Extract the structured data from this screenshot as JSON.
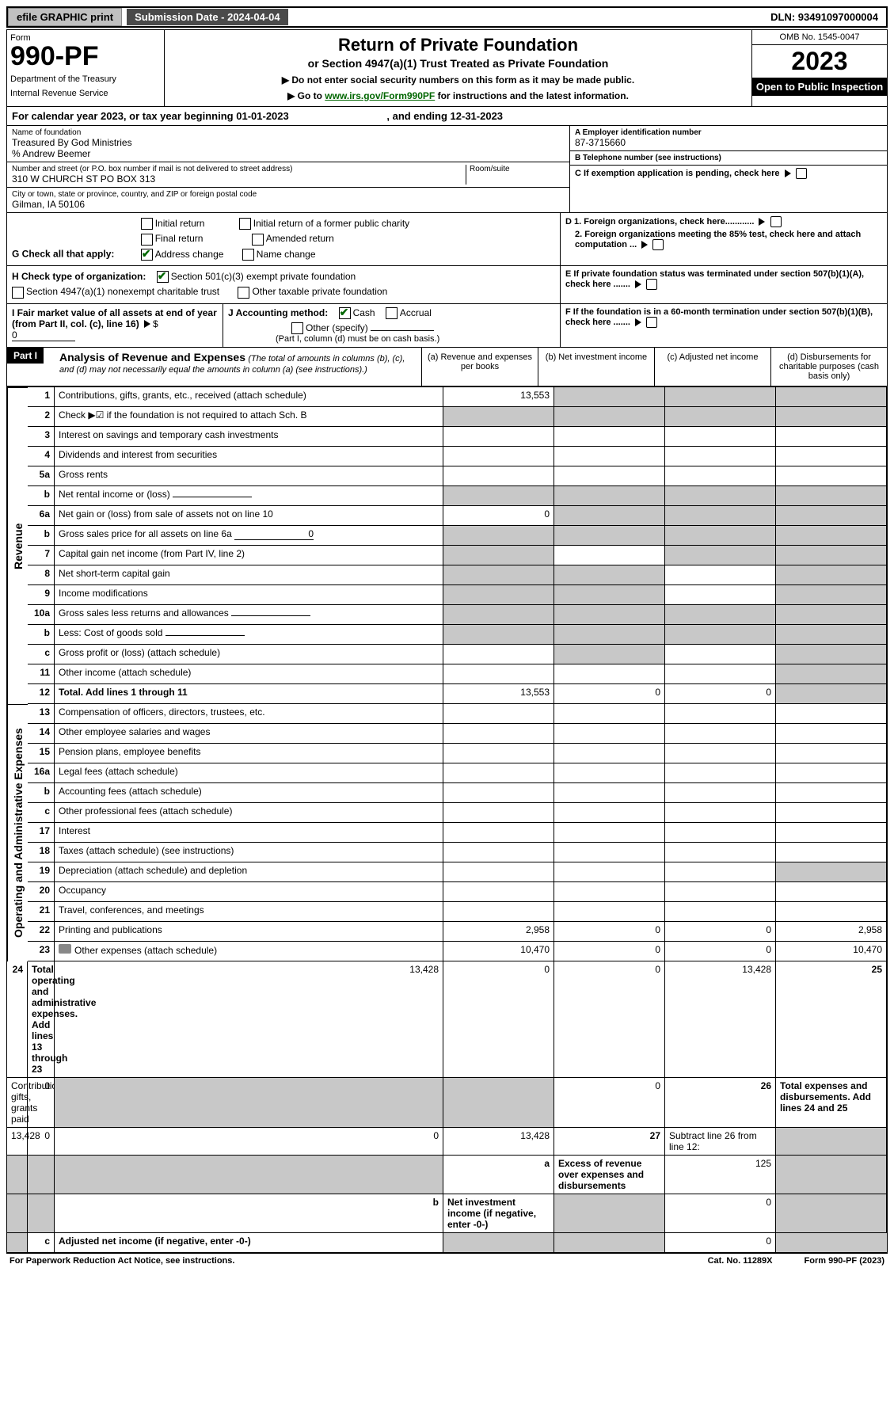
{
  "topbar": {
    "efile": "efile GRAPHIC print",
    "sub": "Submission Date - 2024-04-04",
    "dln": "DLN: 93491097000004"
  },
  "form": {
    "label": "Form",
    "number": "990-PF",
    "dept": "Department of the Treasury",
    "irs": "Internal Revenue Service"
  },
  "title": {
    "main": "Return of Private Foundation",
    "sub": "or Section 4947(a)(1) Trust Treated as Private Foundation",
    "warn": "▶ Do not enter social security numbers on this form as it may be made public.",
    "link_pre": "▶ Go to ",
    "link": "www.irs.gov/Form990PF",
    "link_post": " for instructions and the latest information."
  },
  "yearbox": {
    "omb": "OMB No. 1545-0047",
    "year": "2023",
    "open": "Open to Public Inspection"
  },
  "calendar": {
    "pre": "For calendar year 2023, or tax year beginning ",
    "begin": "01-01-2023",
    "mid": ", and ending ",
    "end": "12-31-2023"
  },
  "idblock": {
    "name_lbl": "Name of foundation",
    "name": "Treasured By God Ministries",
    "care": "% Andrew Beemer",
    "addr_lbl": "Number and street (or P.O. box number if mail is not delivered to street address)",
    "addr": "310 W CHURCH ST PO BOX 313",
    "room_lbl": "Room/suite",
    "city_lbl": "City or town, state or province, country, and ZIP or foreign postal code",
    "city": "Gilman, IA  50106",
    "ein_lbl": "A Employer identification number",
    "ein": "87-3715660",
    "tel_lbl": "B Telephone number (see instructions)",
    "tel": "",
    "c": "C If exemption application is pending, check here",
    "d1": "D 1. Foreign organizations, check here............",
    "d2": "2. Foreign organizations meeting the 85% test, check here and attach computation ...",
    "e": "E  If private foundation status was terminated under section 507(b)(1)(A), check here .......",
    "f": "F  If the foundation is in a 60-month termination under section 507(b)(1)(B), check here ......."
  },
  "g": {
    "lbl": "G Check all that apply:",
    "o": [
      "Initial return",
      "Final return",
      "Address change",
      "Initial return of a former public charity",
      "Amended return",
      "Name change"
    ]
  },
  "h": {
    "lbl": "H Check type of organization:",
    "o": [
      "Section 501(c)(3) exempt private foundation",
      "Section 4947(a)(1) nonexempt charitable trust",
      "Other taxable private foundation"
    ]
  },
  "i": {
    "lbl": "I Fair market value of all assets at end of year (from Part II, col. (c), line 16)",
    "val": "0"
  },
  "j": {
    "lbl": "J Accounting method:",
    "o": [
      "Cash",
      "Accrual",
      "Other (specify)"
    ],
    "note": "(Part I, column (d) must be on cash basis.)"
  },
  "part1": {
    "label": "Part I",
    "title": "Analysis of Revenue and Expenses",
    "note": "(The total of amounts in columns (b), (c), and (d) may not necessarily equal the amounts in column (a) (see instructions).)",
    "cols": [
      "(a)  Revenue and expenses per books",
      "(b)  Net investment income",
      "(c)  Adjusted net income",
      "(d)  Disbursements for charitable purposes (cash basis only)"
    ]
  },
  "sections": {
    "rev": "Revenue",
    "exp": "Operating and Administrative Expenses"
  },
  "rows": [
    {
      "n": "1",
      "t": "Contributions, gifts, grants, etc., received (attach schedule)",
      "a": "13,553",
      "bs": 1,
      "cs": 1,
      "ds": 1
    },
    {
      "n": "2",
      "t": "Check ▶☑ if the foundation is not required to attach Sch. B",
      "noabcd": 1
    },
    {
      "n": "3",
      "t": "Interest on savings and temporary cash investments"
    },
    {
      "n": "4",
      "t": "Dividends and interest from securities"
    },
    {
      "n": "5a",
      "t": "Gross rents"
    },
    {
      "n": "b",
      "t": "Net rental income or (loss)",
      "inline": 1,
      "bs": 1,
      "cs": 1,
      "ds": 1,
      "as": 1
    },
    {
      "n": "6a",
      "t": "Net gain or (loss) from sale of assets not on line 10",
      "a": "0",
      "bs": 1,
      "cs": 1,
      "ds": 1
    },
    {
      "n": "b",
      "t": "Gross sales price for all assets on line 6a",
      "inline": 1,
      "iv": "0",
      "as": 1,
      "bs": 1,
      "cs": 1,
      "ds": 1
    },
    {
      "n": "7",
      "t": "Capital gain net income (from Part IV, line 2)",
      "as": 1,
      "cs": 1,
      "ds": 1
    },
    {
      "n": "8",
      "t": "Net short-term capital gain",
      "as": 1,
      "bs": 1,
      "ds": 1
    },
    {
      "n": "9",
      "t": "Income modifications",
      "as": 1,
      "bs": 1,
      "ds": 1
    },
    {
      "n": "10a",
      "t": "Gross sales less returns and allowances",
      "inline": 1,
      "as": 1,
      "bs": 1,
      "cs": 1,
      "ds": 1
    },
    {
      "n": "b",
      "t": "Less: Cost of goods sold",
      "inline": 1,
      "as": 1,
      "bs": 1,
      "cs": 1,
      "ds": 1
    },
    {
      "n": "c",
      "t": "Gross profit or (loss) (attach schedule)",
      "bs": 1,
      "ds": 1
    },
    {
      "n": "11",
      "t": "Other income (attach schedule)",
      "ds": 1
    },
    {
      "n": "12",
      "t": "Total. Add lines 1 through 11",
      "bold": 1,
      "a": "13,553",
      "b": "0",
      "c": "0",
      "ds": 1
    },
    {
      "sec": "exp",
      "n": "13",
      "t": "Compensation of officers, directors, trustees, etc."
    },
    {
      "n": "14",
      "t": "Other employee salaries and wages"
    },
    {
      "n": "15",
      "t": "Pension plans, employee benefits"
    },
    {
      "n": "16a",
      "t": "Legal fees (attach schedule)"
    },
    {
      "n": "b",
      "t": "Accounting fees (attach schedule)"
    },
    {
      "n": "c",
      "t": "Other professional fees (attach schedule)"
    },
    {
      "n": "17",
      "t": "Interest"
    },
    {
      "n": "18",
      "t": "Taxes (attach schedule) (see instructions)"
    },
    {
      "n": "19",
      "t": "Depreciation (attach schedule) and depletion",
      "ds": 1
    },
    {
      "n": "20",
      "t": "Occupancy"
    },
    {
      "n": "21",
      "t": "Travel, conferences, and meetings"
    },
    {
      "n": "22",
      "t": "Printing and publications",
      "a": "2,958",
      "b": "0",
      "c": "0",
      "d": "2,958"
    },
    {
      "n": "23",
      "t": "Other expenses (attach schedule)",
      "icon": 1,
      "a": "10,470",
      "b": "0",
      "c": "0",
      "d": "10,470"
    },
    {
      "n": "24",
      "t": "Total operating and administrative expenses. Add lines 13 through 23",
      "bold": 1,
      "a": "13,428",
      "b": "0",
      "c": "0",
      "d": "13,428"
    },
    {
      "n": "25",
      "t": "Contributions, gifts, grants paid",
      "a": "0",
      "bs": 1,
      "cs": 1,
      "d": "0"
    },
    {
      "n": "26",
      "t": "Total expenses and disbursements. Add lines 24 and 25",
      "bold": 1,
      "a": "13,428",
      "b": "0",
      "c": "0",
      "d": "13,428"
    },
    {
      "nosec": 1,
      "n": "27",
      "t": "Subtract line 26 from line 12:",
      "as": 1,
      "bs": 1,
      "cs": 1,
      "ds": 1
    },
    {
      "nosec": 1,
      "n": "a",
      "t": "Excess of revenue over expenses and disbursements",
      "bold": 1,
      "a": "125",
      "bs": 1,
      "cs": 1,
      "ds": 1
    },
    {
      "nosec": 1,
      "n": "b",
      "t": "Net investment income (if negative, enter -0-)",
      "bold": 1,
      "as": 1,
      "b": "0",
      "cs": 1,
      "ds": 1
    },
    {
      "nosec": 1,
      "n": "c",
      "t": "Adjusted net income (if negative, enter -0-)",
      "bold": 1,
      "as": 1,
      "bs": 1,
      "c": "0",
      "ds": 1
    }
  ],
  "footer": {
    "left": "For Paperwork Reduction Act Notice, see instructions.",
    "mid": "Cat. No. 11289X",
    "right": "Form 990-PF (2023)"
  }
}
